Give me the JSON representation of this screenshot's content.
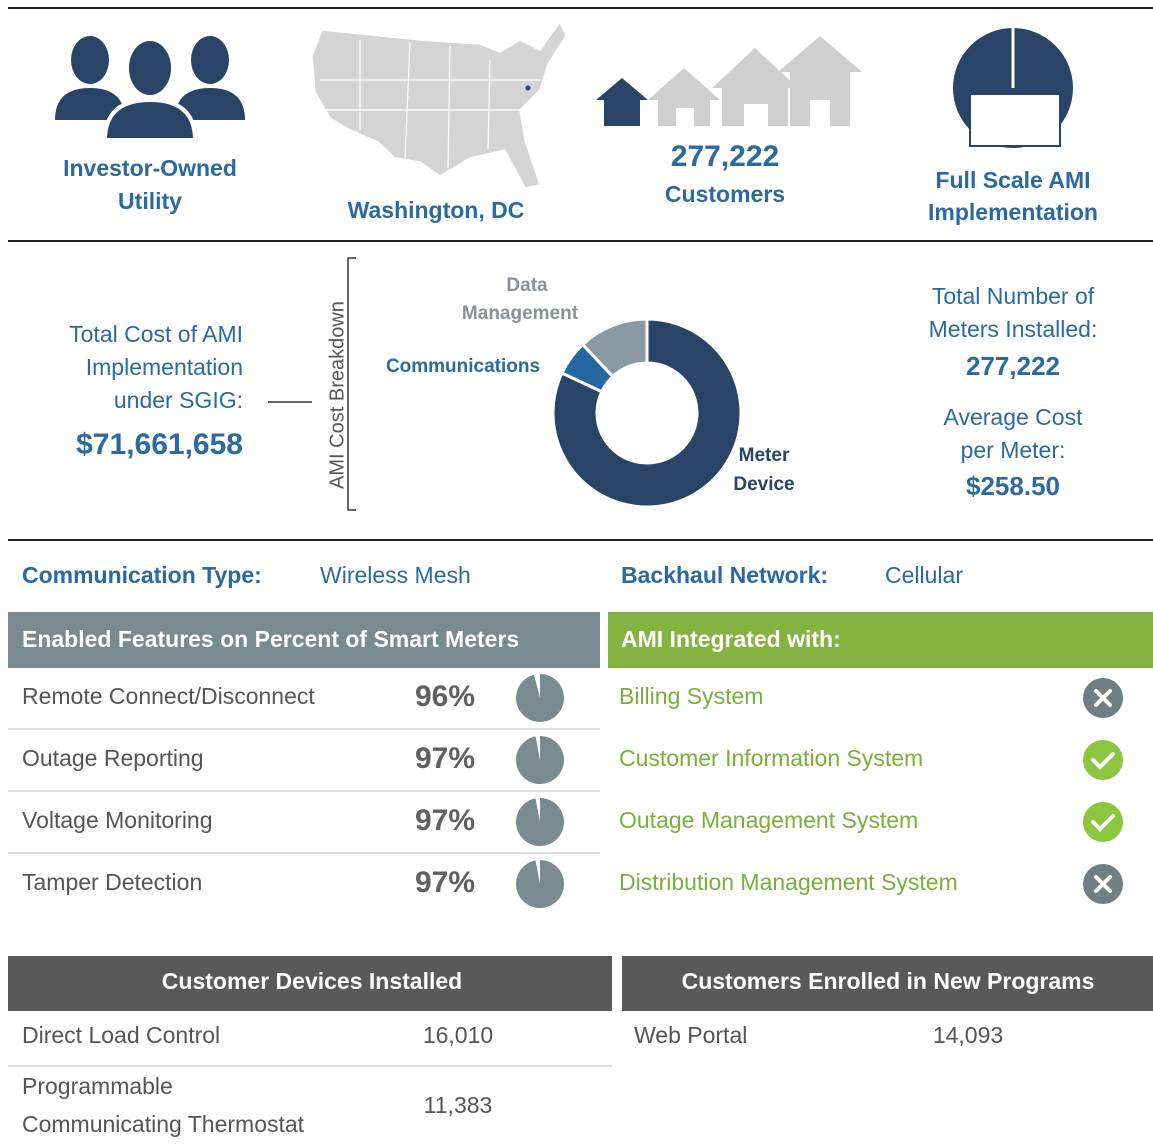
{
  "header": {
    "utility_type": [
      "Investor-Owned",
      "Utility"
    ],
    "location": "Washington, DC",
    "customers": "277,222",
    "customers_label": "Customers",
    "implementation": [
      "Full Scale AMI",
      "Implementation"
    ]
  },
  "cost": {
    "title": [
      "Total Cost of AMI",
      "Implementation",
      "under SGIG:"
    ],
    "total": "$71,661,658",
    "breakdown_label": "AMI Cost Breakdown"
  },
  "cost_chart": {
    "type": "pie",
    "categories": [
      [
        "Meter",
        "Device"
      ],
      [
        "Communications"
      ],
      [
        "Data",
        "Management"
      ]
    ],
    "values": [
      82,
      6,
      12
    ],
    "colors": [
      "#2a4468",
      "#2467a3",
      "#8a9aa3"
    ]
  },
  "meters": {
    "installed_label": [
      "Total Number of",
      "Meters Installed:"
    ],
    "installed": "277,222",
    "average_label": [
      "Average Cost",
      "per Meter:"
    ],
    "average": "$258.50"
  },
  "network": {
    "communication_label": "Communication Type:",
    "communication": "Wireless Mesh",
    "backhaul_label": "Backhaul Network:",
    "backhaul": "Cellular"
  },
  "features": {
    "title": "Enabled Features on Percent of Smart Meters",
    "color": "#7a8a91",
    "rows": [
      {
        "name": "Remote Connect/Disconnect",
        "value": 96,
        "label": "96%"
      },
      {
        "name": "Outage Reporting",
        "value": 97,
        "label": "97%"
      },
      {
        "name": "Voltage Monitoring",
        "value": 97,
        "label": "97%"
      },
      {
        "name": "Tamper Detection",
        "value": 97,
        "label": "97%"
      }
    ]
  },
  "integration": {
    "title": "AMI Integrated with:",
    "rows": [
      {
        "name": "Billing System",
        "integrated": false
      },
      {
        "name": "Customer Information System",
        "integrated": true
      },
      {
        "name": "Outage Management System",
        "integrated": true
      },
      {
        "name": "Distribution Management System",
        "integrated": false
      }
    ]
  },
  "devices": {
    "title": "Customer Devices Installed",
    "rows": [
      {
        "name": [
          "Direct Load Control"
        ],
        "count": "16,010"
      },
      {
        "name": [
          "Programmable",
          "Communicating Thermostat"
        ],
        "count": "11,383"
      }
    ]
  },
  "programs": {
    "title": "Customers Enrolled in New Programs",
    "rows": [
      {
        "name": "Web Portal",
        "count": "14,093"
      }
    ]
  }
}
